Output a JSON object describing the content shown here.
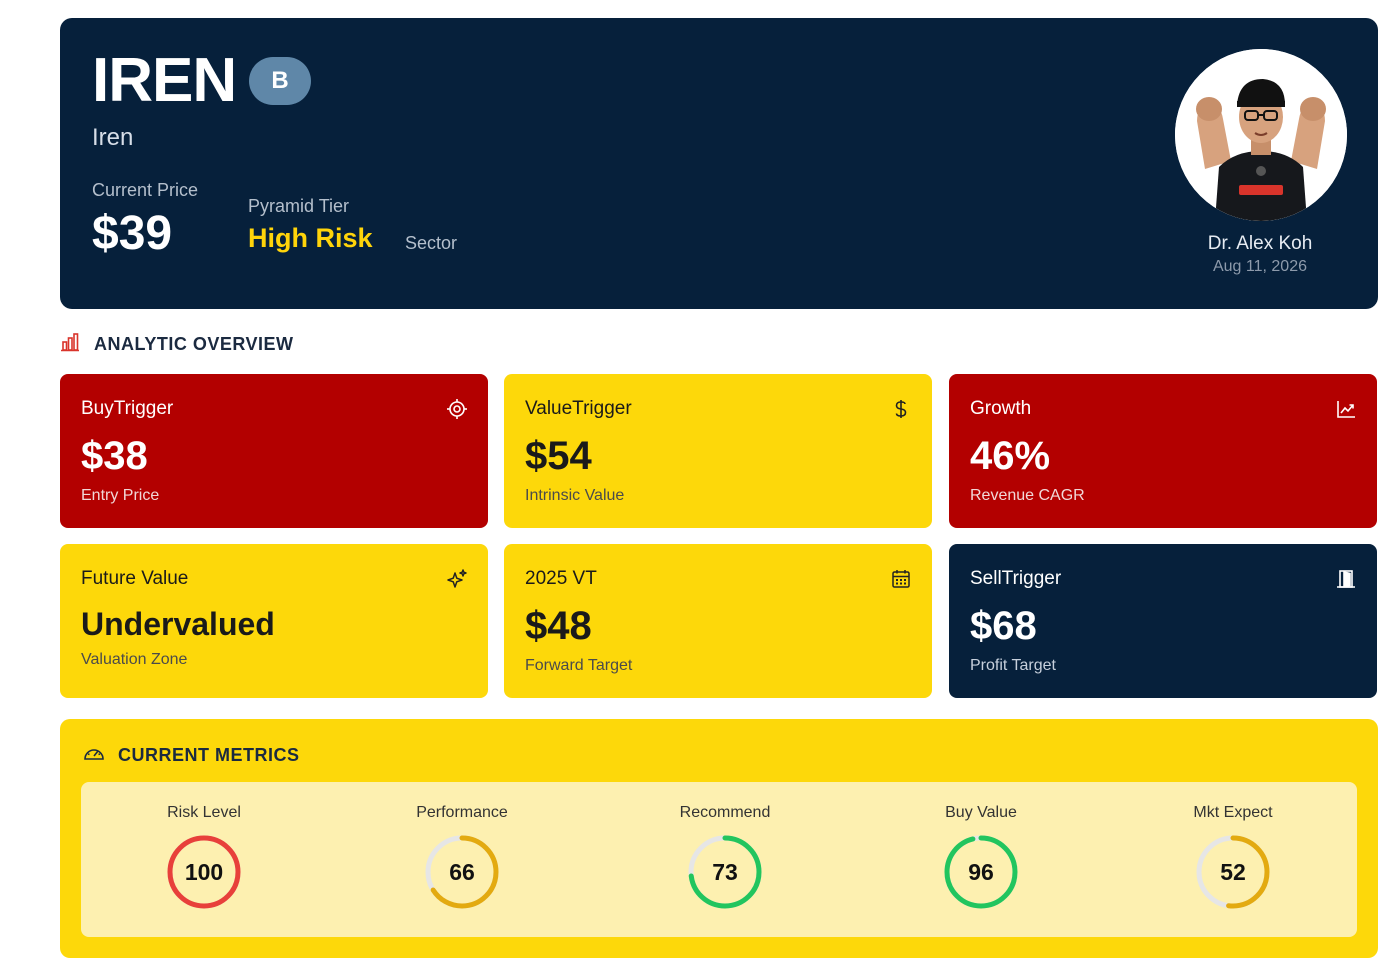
{
  "header": {
    "ticker": "IREN",
    "grade": "B",
    "company": "Iren",
    "current_price_label": "Current Price",
    "current_price": "$39",
    "tier_label": "Pyramid Tier",
    "tier_value": "High Risk",
    "sector_label": "Sector",
    "analyst_name": "Dr. Alex Koh",
    "analyst_date": "Aug 11, 2026"
  },
  "overview": {
    "title": "ANALYTIC OVERVIEW",
    "cards": [
      {
        "title": "BuyTrigger",
        "value": "$38",
        "sub": "Entry Price",
        "icon": "target-icon",
        "color": "#b30000"
      },
      {
        "title": "ValueTrigger",
        "value": "$54",
        "sub": "Intrinsic Value",
        "icon": "dollar-icon",
        "color": "#fdd80a"
      },
      {
        "title": "Growth",
        "value": "46%",
        "sub": "Revenue CAGR",
        "icon": "trend-up-icon",
        "color": "#b30000"
      },
      {
        "title": "Future Value",
        "value": "Undervalued",
        "sub": "Valuation Zone",
        "icon": "sparkle-icon",
        "color": "#fdd80a"
      },
      {
        "title": "2025 VT",
        "value": "$48",
        "sub": "Forward Target",
        "icon": "calendar-icon",
        "color": "#fdd80a"
      },
      {
        "title": "SellTrigger",
        "value": "$68",
        "sub": "Profit Target",
        "icon": "door-icon",
        "color": "#06203b"
      }
    ]
  },
  "metrics": {
    "title": "CURRENT METRICS",
    "items": [
      {
        "label": "Risk Level",
        "value": 100,
        "color": "#e8403a"
      },
      {
        "label": "Performance",
        "value": 66,
        "color": "#e3aa10"
      },
      {
        "label": "Recommend",
        "value": 73,
        "color": "#22c55e"
      },
      {
        "label": "Buy Value",
        "value": 96,
        "color": "#22c55e"
      },
      {
        "label": "Mkt Expect",
        "value": 52,
        "color": "#e3aa10"
      }
    ]
  }
}
